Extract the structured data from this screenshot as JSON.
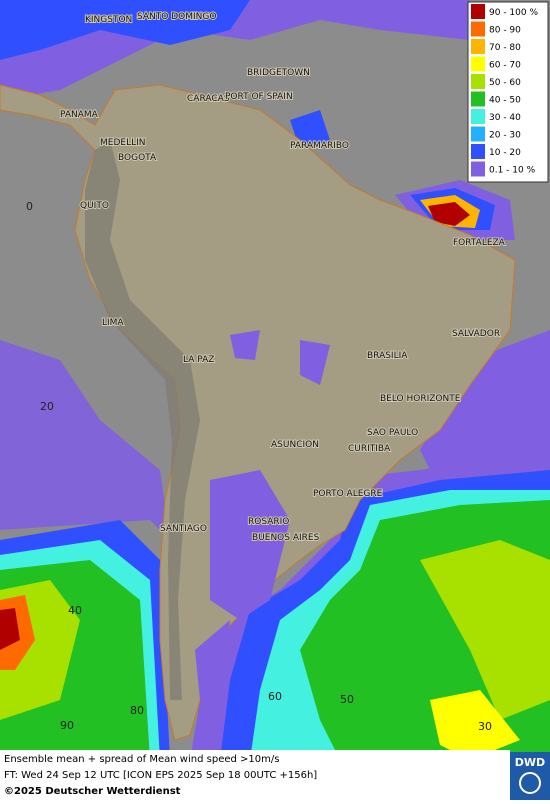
{
  "map_title": "Ensemble mean + spread of Mean wind speed >10m/s",
  "forecast_time": "FT: Wed 24 Sep 12 UTC [ICON EPS 2025 Sep 18 00UTC +156h]",
  "copyright": "©2025 Deutscher Wetterdienst",
  "logo": "DWD",
  "legend": {
    "items": [
      {
        "label": "90 - 100 %",
        "color": "#b00000"
      },
      {
        "label": "80 - 90",
        "color": "#ff6a00"
      },
      {
        "label": "70 - 80",
        "color": "#ffb400"
      },
      {
        "label": "60 - 70",
        "color": "#ffff00"
      },
      {
        "label": "50 - 60",
        "color": "#a8e000"
      },
      {
        "label": "40 - 50",
        "color": "#22c022"
      },
      {
        "label": "30 - 40",
        "color": "#44f0e0"
      },
      {
        "label": "20 - 30",
        "color": "#22b0ff"
      },
      {
        "label": "10 - 20",
        "color": "#3050ff"
      },
      {
        "label": "0.1 - 10 %",
        "color": "#8060e0"
      }
    ]
  },
  "cities": [
    "KINGSTON",
    "SANTO DOMINGO",
    "BRIDGETOWN",
    "CARACAS",
    "PORT OF SPAIN",
    "PANAMA",
    "MEDELLIN",
    "BOGOTA",
    "PARAMARIBO",
    "QUITO",
    "FORTALEZA",
    "LIMA",
    "SALVADOR",
    "LA PAZ",
    "BRASILIA",
    "BELO HORIZONTE",
    "SAO PAULO",
    "ASUNCION",
    "CURITIBA",
    "PORTO ALEGRE",
    "ROSARIO",
    "SANTIAGO",
    "BUENOS AIRES"
  ],
  "grid_labels": [
    "0",
    "20",
    "40",
    "90",
    "80",
    "60",
    "50",
    "30"
  ]
}
